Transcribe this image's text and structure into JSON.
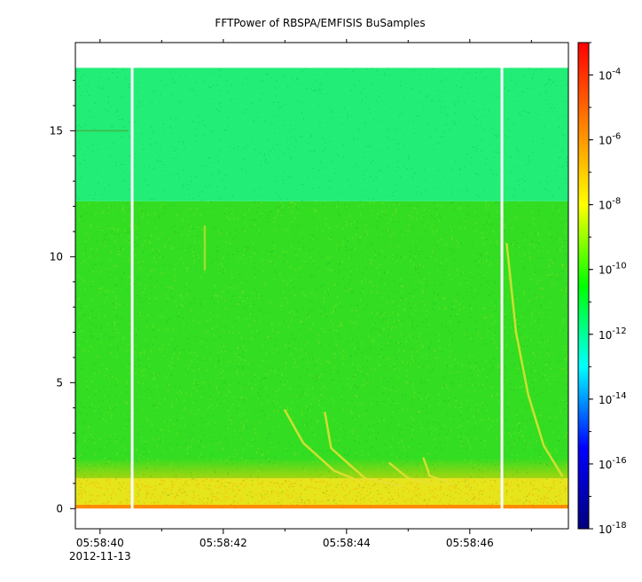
{
  "chart_data": {
    "type": "heatmap",
    "title": "FFTPower of RBSPA/EMFISIS  BuSamples",
    "xlabel": "",
    "ylabel": "",
    "x_axis": {
      "kind": "time",
      "range": [
        "05:58:39.60",
        "05:58:47.60"
      ],
      "ticks": [
        {
          "label": "05:58:40",
          "sublabel": "2012-11-13",
          "value": "05:58:40"
        },
        {
          "label": "05:58:42",
          "sublabel": "",
          "value": "05:58:42"
        },
        {
          "label": "05:58:44",
          "sublabel": "",
          "value": "05:58:44"
        },
        {
          "label": "05:58:46",
          "sublabel": "",
          "value": "05:58:46"
        }
      ],
      "minor_ticks": [
        "05:58:41",
        "05:58:43",
        "05:58:45",
        "05:58:47"
      ]
    },
    "y_axis": {
      "range": [
        -0.8,
        18.5
      ],
      "ticks": [
        {
          "label": "0",
          "value": 0
        },
        {
          "label": "5",
          "value": 5
        },
        {
          "label": "10",
          "value": 10
        },
        {
          "label": "15",
          "value": 15
        }
      ]
    },
    "colorbar": {
      "scale": "log",
      "range": [
        1e-18,
        0.001
      ],
      "colormap": [
        "#00007f",
        "#0000ff",
        "#00ffff",
        "#00ff00",
        "#ffff00",
        "#ff7f00",
        "#ff0000"
      ],
      "ticks": [
        {
          "base": "10",
          "exp": "-4",
          "value": 0.0001
        },
        {
          "base": "10",
          "exp": "-6",
          "value": 1e-06
        },
        {
          "base": "10",
          "exp": "-8",
          "value": 1e-08
        },
        {
          "base": "10",
          "exp": "-10",
          "value": 1e-10
        },
        {
          "base": "10",
          "exp": "-12",
          "value": 1e-12
        },
        {
          "base": "10",
          "exp": "-14",
          "value": 1e-14
        },
        {
          "base": "10",
          "exp": "-16",
          "value": 1e-16
        },
        {
          "base": "10",
          "exp": "-18",
          "value": 1e-18
        }
      ]
    },
    "data_coverage": {
      "frequency_range": [
        0,
        17.5
      ],
      "gaps": [
        {
          "start": "05:58:40.5",
          "end": "05:58:40.55"
        },
        {
          "start": "05:58:46.5",
          "end": "05:58:46.55"
        }
      ]
    },
    "power_bands": [
      {
        "freq_range": [
          12.2,
          17.5
        ],
        "level": 1e-12,
        "color": "#22ee77"
      },
      {
        "freq_range": [
          1.2,
          12.2
        ],
        "level": 1e-10,
        "color": "#33dd22"
      },
      {
        "freq_range": [
          0.15,
          1.2
        ],
        "level": 1e-08,
        "color": "#e6e41a"
      },
      {
        "freq_range": [
          0,
          0.15
        ],
        "level": 1e-06,
        "color": "#ff8a00"
      }
    ],
    "features": [
      {
        "type": "chorus",
        "points": [
          [
            43.0,
            3.9
          ],
          [
            43.3,
            2.6
          ],
          [
            43.8,
            1.5
          ],
          [
            44.2,
            1.1
          ]
        ]
      },
      {
        "type": "chorus",
        "points": [
          [
            43.65,
            3.8
          ],
          [
            43.75,
            2.4
          ],
          [
            44.3,
            1.2
          ],
          [
            44.9,
            0.9
          ]
        ]
      },
      {
        "type": "chorus",
        "points": [
          [
            44.7,
            1.8
          ],
          [
            45.0,
            1.2
          ],
          [
            45.4,
            1.0
          ]
        ]
      },
      {
        "type": "chorus",
        "points": [
          [
            45.25,
            2.0
          ],
          [
            45.35,
            1.3
          ],
          [
            45.7,
            1.0
          ]
        ]
      },
      {
        "type": "chorus",
        "points": [
          [
            46.6,
            10.5
          ],
          [
            46.75,
            7.0
          ],
          [
            46.95,
            4.5
          ],
          [
            47.2,
            2.5
          ],
          [
            47.5,
            1.3
          ]
        ]
      },
      {
        "type": "streak",
        "points": [
          [
            41.7,
            11.2
          ],
          [
            41.7,
            9.5
          ]
        ]
      },
      {
        "type": "line",
        "points": [
          [
            39.6,
            15.0
          ],
          [
            40.45,
            15.0
          ]
        ]
      }
    ]
  }
}
